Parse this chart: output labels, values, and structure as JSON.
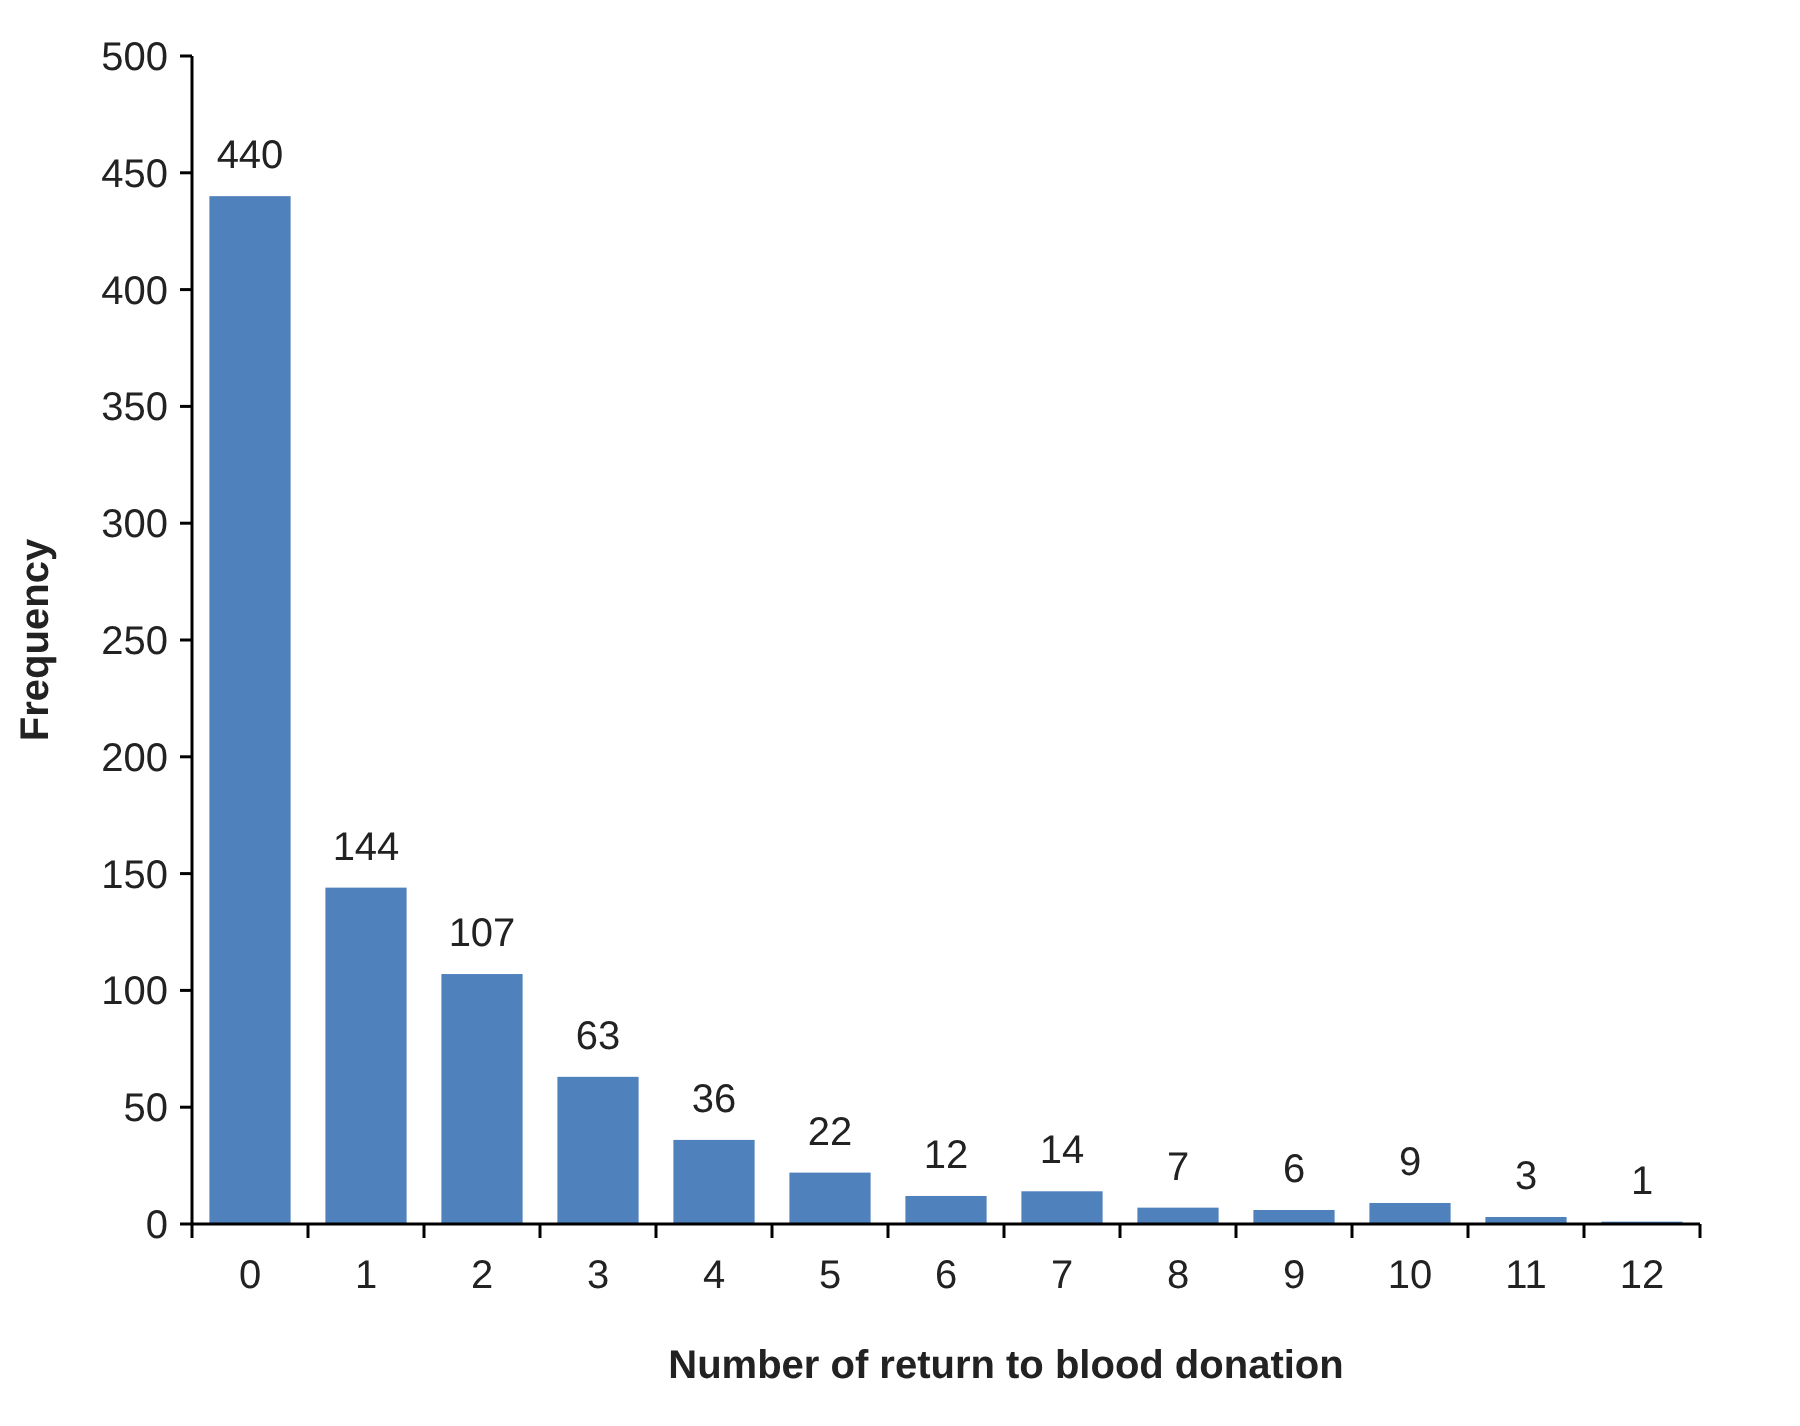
{
  "chart_data": {
    "type": "bar",
    "xlabel": "Number of return to blood donation",
    "ylabel": "Frequency",
    "categories": [
      "0",
      "1",
      "2",
      "3",
      "4",
      "5",
      "6",
      "7",
      "8",
      "9",
      "10",
      "11",
      "12"
    ],
    "values": [
      440,
      144,
      107,
      63,
      36,
      22,
      12,
      14,
      7,
      6,
      9,
      3,
      1
    ],
    "color": "#4f81bd",
    "ylim": [
      0,
      500
    ],
    "yticks": [
      0,
      50,
      100,
      150,
      200,
      250,
      300,
      350,
      400,
      450,
      500
    ],
    "data_labels": true
  }
}
